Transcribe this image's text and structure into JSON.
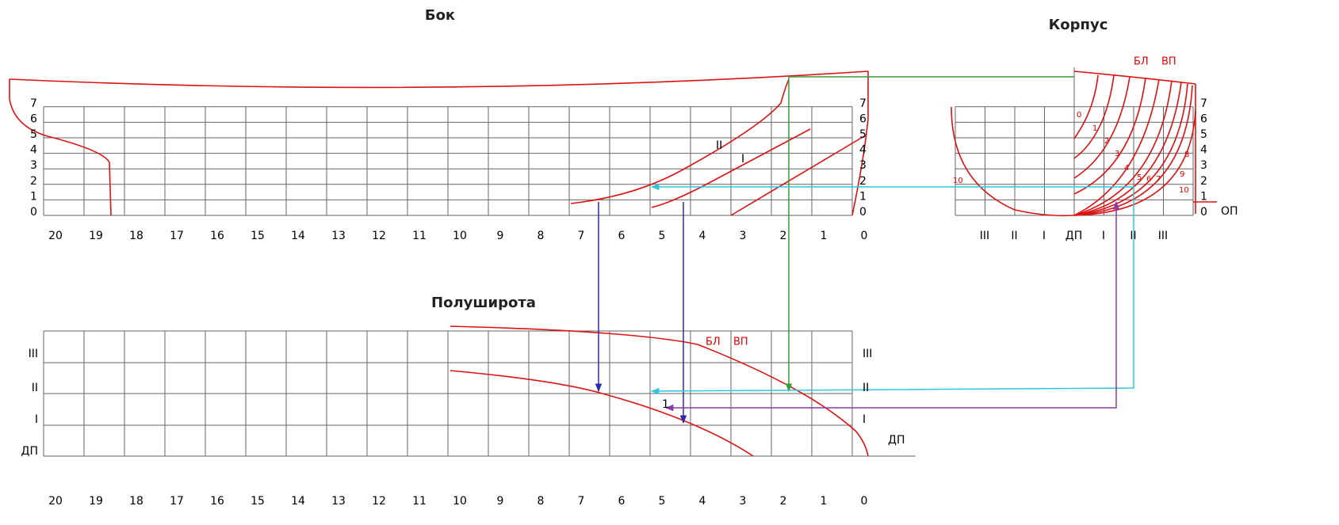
{
  "side": {
    "title": "Бок",
    "waterlines_left": [
      "7",
      "6",
      "5",
      "4",
      "3",
      "2",
      "1",
      "0"
    ],
    "waterlines_right": [
      "7",
      "6",
      "5",
      "4",
      "3",
      "2",
      "1",
      "0"
    ],
    "stations": [
      "20",
      "19",
      "18",
      "17",
      "16",
      "15",
      "14",
      "13",
      "12",
      "11",
      "10",
      "9",
      "8",
      "7",
      "6",
      "5",
      "4",
      "3",
      "2",
      "1",
      "0"
    ],
    "buttock_labels": [
      "II",
      "I"
    ]
  },
  "body": {
    "title": "Корпус",
    "labels": [
      "БЛ",
      "ВП"
    ],
    "waterlines": [
      "7",
      "6",
      "5",
      "4",
      "3",
      "2",
      "1",
      "0"
    ],
    "baseline": "ОП",
    "section_numbers": [
      "0",
      "1",
      "2",
      "3",
      "4",
      "5",
      "6",
      "7",
      "8",
      "9",
      "10",
      "10"
    ],
    "buttocks": [
      "III",
      "II",
      "I",
      "ДП",
      "I",
      "II",
      "III"
    ]
  },
  "half": {
    "title": "Полуширота",
    "labels": [
      "БЛ",
      "ВП"
    ],
    "left": [
      "III",
      "II",
      "I",
      "ДП"
    ],
    "right": [
      "III",
      "II",
      "I",
      "ДП"
    ],
    "stations": [
      "20",
      "19",
      "18",
      "17",
      "16",
      "15",
      "14",
      "13",
      "12",
      "11",
      "10",
      "9",
      "8",
      "7",
      "6",
      "5",
      "4",
      "3",
      "2",
      "1",
      "0"
    ],
    "mark": "1"
  }
}
